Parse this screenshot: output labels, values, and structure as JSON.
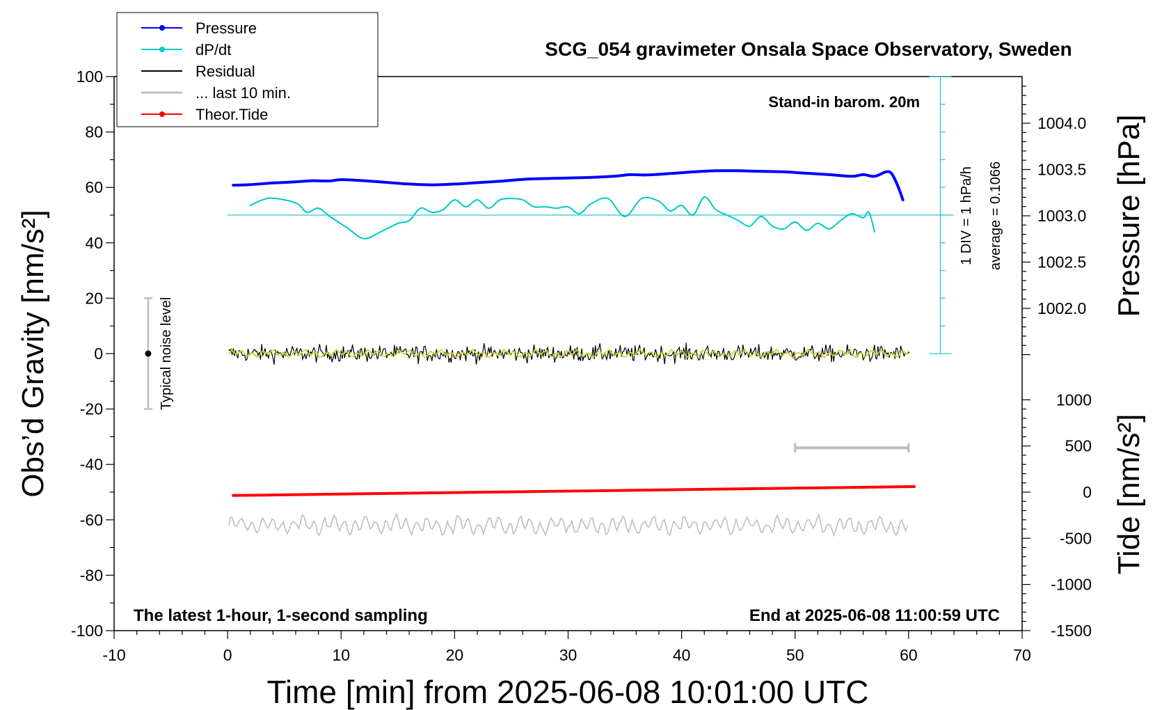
{
  "chart_data": {
    "type": "line",
    "title": "SCG_054 gravimeter Onsala Space Observatory, Sweden",
    "xlabel": "Time [min] from 2025-06-08 10:01:00 UTC",
    "ylabel_left": "Obs’d Gravity [nm/s²]",
    "ylabel_right_pressure": "Pressure [hPa]",
    "ylabel_right_tide": "Tide [nm/s²]",
    "xlim": [
      -10,
      70
    ],
    "ylim": [
      -100,
      100
    ],
    "x_ticks": [
      "-10",
      "0",
      "10",
      "20",
      "30",
      "40",
      "50",
      "60",
      "70"
    ],
    "y_ticks": [
      "-100",
      "-80",
      "-60",
      "-40",
      "-20",
      "0",
      "20",
      "40",
      "60",
      "80",
      "100"
    ],
    "pressure_ticks": [
      "1002.0",
      "1002.5",
      "1003.0",
      "1003.5",
      "1004.0"
    ],
    "tide_ticks": [
      "-1500",
      "-1000",
      "-500",
      "0",
      "500",
      "1000"
    ],
    "legend": {
      "position": "top-left",
      "entries": [
        {
          "label": "Pressure",
          "color": "#0000ff",
          "marker": true
        },
        {
          "label": "dP/dt",
          "color": "#00c8c8",
          "marker": true
        },
        {
          "label": "Residual",
          "color": "#000000",
          "marker": false
        },
        {
          "label": "... last 10 min.",
          "color": "#bebebe",
          "marker": false
        },
        {
          "label": "Theor.Tide",
          "color": "#ff0000",
          "marker": true
        }
      ]
    },
    "annotations": {
      "barometer": "Stand-in barom. 20m",
      "div_label": "1 DIV = 1 hPa/h",
      "average_label": "average = 0.1066",
      "noise_label": "Typical noise level",
      "bottom_left": "The latest 1-hour, 1-second sampling",
      "bottom_right": "End at 2025-06-08 11:00:59 UTC"
    },
    "noise_bar": {
      "x": -7,
      "center": 0,
      "low": -20,
      "high": 20
    },
    "last10_bar": {
      "start": 50,
      "end": 60,
      "y": -34
    },
    "dpdt_baseline": 50,
    "series": [
      {
        "name": "Pressure",
        "color": "#0000ff",
        "x": [
          0.5,
          2,
          4,
          6,
          7.5,
          9,
          10,
          12,
          14,
          16,
          18,
          20,
          22,
          24,
          26,
          28,
          30,
          32,
          34,
          35.5,
          37,
          39,
          41,
          43,
          45,
          47,
          49,
          51,
          53,
          55,
          56,
          57,
          58,
          58.5,
          59,
          59.5
        ],
        "values": [
          60.8,
          61.0,
          61.6,
          62.0,
          62.4,
          62.3,
          62.8,
          62.4,
          61.8,
          61.2,
          60.9,
          61.2,
          61.7,
          62.2,
          62.9,
          63.2,
          63.4,
          63.6,
          64.0,
          64.6,
          64.5,
          65.0,
          65.6,
          66.0,
          66.0,
          65.8,
          65.6,
          65.1,
          64.6,
          64.0,
          64.6,
          64.0,
          65.6,
          65.0,
          61.0,
          55.5
        ]
      },
      {
        "name": "dP/dt",
        "color": "#00c8c8",
        "x": [
          2,
          3.5,
          5,
          6.2,
          7,
          8,
          9,
          10.5,
          12,
          13.5,
          15,
          16,
          17,
          18,
          19,
          20,
          21,
          22,
          23,
          24,
          25,
          26,
          27,
          28,
          29,
          30,
          31,
          32,
          33.5,
          35,
          36.5,
          38,
          39,
          40,
          41,
          42,
          43,
          44,
          45,
          46,
          47,
          48,
          49,
          50,
          51,
          52,
          53,
          54,
          55,
          56,
          56.5,
          57
        ],
        "values": [
          53.5,
          56.0,
          55.5,
          54.0,
          51.0,
          52.5,
          49.5,
          45.5,
          41.5,
          44.0,
          47.0,
          48.0,
          52.5,
          51.0,
          52.0,
          55.5,
          53.0,
          55.5,
          52.5,
          55.5,
          56.0,
          55.5,
          53.0,
          53.0,
          52.5,
          53.0,
          50.5,
          54.0,
          56.0,
          49.5,
          56.0,
          55.0,
          51.5,
          53.5,
          50.0,
          56.5,
          52.0,
          50.0,
          48.0,
          46.0,
          49.5,
          46.0,
          45.0,
          47.5,
          44.5,
          47.0,
          45.0,
          48.0,
          50.5,
          49.0,
          51.0,
          44.0
        ]
      },
      {
        "name": "Theor.Tide",
        "color": "#ff0000",
        "x": [
          0.5,
          60.5
        ],
        "values": [
          -51.2,
          -48.0
        ]
      }
    ]
  }
}
